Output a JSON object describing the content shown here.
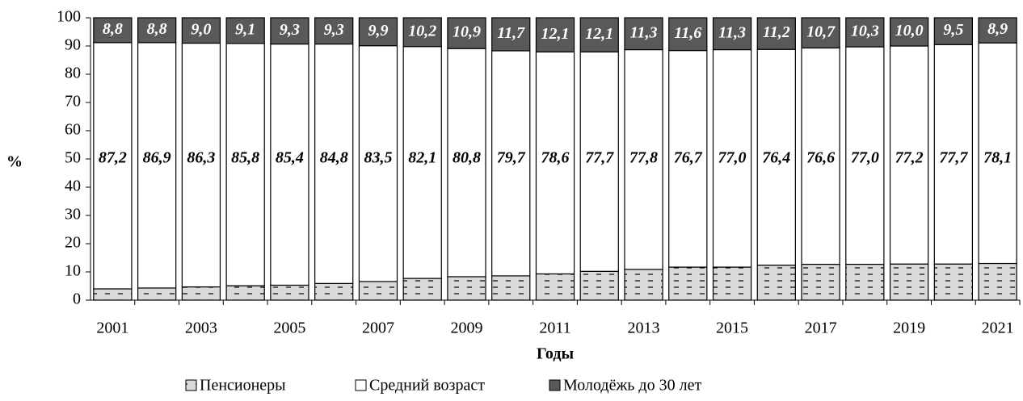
{
  "chart_data": {
    "type": "stacked_bar",
    "x_label": "Годы",
    "y_label": "%",
    "categories": [
      "2001",
      null,
      "2003",
      null,
      "2005",
      null,
      "2007",
      null,
      "2009",
      null,
      "2011",
      null,
      "2013",
      null,
      "2015",
      null,
      "2017",
      null,
      "2019",
      null,
      "2021"
    ],
    "series": [
      {
        "name": "Пенсионеры",
        "color": "#d9d9d9",
        "pattern": true,
        "values": [
          4.0,
          4.3,
          4.7,
          5.1,
          5.3,
          5.9,
          6.6,
          7.7,
          8.3,
          8.6,
          9.3,
          10.2,
          10.9,
          11.7,
          11.7,
          12.4,
          12.7,
          12.7,
          12.8,
          12.8,
          13.0
        ]
      },
      {
        "name": "Средний возраст",
        "color": "#ffffff",
        "values": [
          87.2,
          86.9,
          86.3,
          85.8,
          85.4,
          84.8,
          83.5,
          82.1,
          80.8,
          79.7,
          78.6,
          77.7,
          77.8,
          76.7,
          77.0,
          76.4,
          76.6,
          77.0,
          77.2,
          77.7,
          78.1
        ],
        "value_labels": [
          "87,2",
          "86,9",
          "86,3",
          "85,8",
          "85,4",
          "84,8",
          "83,5",
          "82,1",
          "80,8",
          "79,7",
          "78,6",
          "77,7",
          "77,8",
          "76,7",
          "77,0",
          "76,4",
          "76,6",
          "77,0",
          "77,2",
          "77,7",
          "78,1"
        ]
      },
      {
        "name": "Молодёжь до 30 лет",
        "color": "#595959",
        "values": [
          8.8,
          8.8,
          9.0,
          9.1,
          9.3,
          9.3,
          9.9,
          10.2,
          10.9,
          11.7,
          12.1,
          12.1,
          11.3,
          11.6,
          11.3,
          11.2,
          10.7,
          10.3,
          10.0,
          9.5,
          8.9
        ],
        "value_labels": [
          "8,8",
          "8,8",
          "9,0",
          "9,1",
          "9,3",
          "9,3",
          "9,9",
          "10,2",
          "10,9",
          "11,7",
          "12,1",
          "12,1",
          "11,3",
          "11,6",
          "11,3",
          "11,2",
          "10,7",
          "10,3",
          "10,0",
          "9,5",
          "8,9"
        ]
      }
    ],
    "ylim": [
      0,
      100
    ],
    "yticks": [
      0,
      10,
      20,
      30,
      40,
      50,
      60,
      70,
      80,
      90,
      100
    ]
  }
}
